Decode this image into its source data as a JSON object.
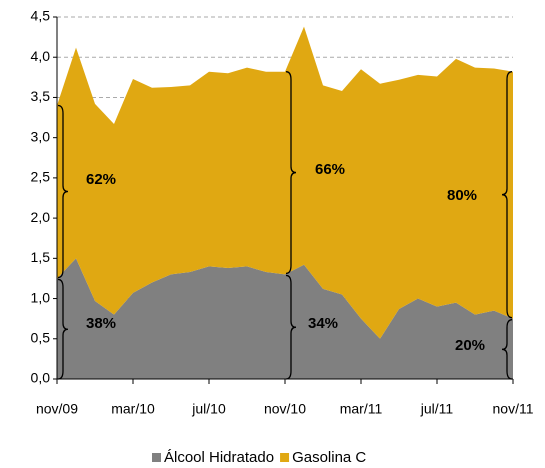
{
  "chart_data": {
    "type": "stacked-area",
    "categories": [
      "nov/09",
      null,
      null,
      null,
      "mar/10",
      null,
      null,
      null,
      "jul/10",
      null,
      null,
      null,
      "nov/10",
      null,
      null,
      null,
      "mar/11",
      null,
      null,
      null,
      "jul/11",
      null,
      null,
      null,
      "nov/11"
    ],
    "series": [
      {
        "name": "Álcool Hidratado",
        "color": "#808080",
        "values": [
          1.25,
          1.5,
          0.97,
          0.8,
          1.07,
          1.2,
          1.3,
          1.33,
          1.4,
          1.38,
          1.4,
          1.33,
          1.3,
          1.42,
          1.12,
          1.05,
          0.75,
          0.5,
          0.87,
          1.0,
          0.9,
          0.95,
          0.8,
          0.85,
          0.75
        ]
      },
      {
        "name": "Gasolina C",
        "color": "#e0a812",
        "values": [
          2.15,
          2.62,
          2.45,
          2.37,
          2.66,
          2.42,
          2.33,
          2.32,
          2.42,
          2.42,
          2.47,
          2.49,
          2.52,
          2.96,
          2.53,
          2.53,
          3.1,
          3.17,
          2.85,
          2.78,
          2.86,
          3.03,
          3.07,
          3.01,
          3.07
        ]
      }
    ],
    "ylim": [
      0,
      4.5
    ],
    "yticks": [
      {
        "value": 0,
        "label": "0,0"
      },
      {
        "value": 0.5,
        "label": "0,5"
      },
      {
        "value": 1,
        "label": "1,0"
      },
      {
        "value": 1.5,
        "label": "1,5"
      },
      {
        "value": 2,
        "label": "2,0"
      },
      {
        "value": 2.5,
        "label": "2,5"
      },
      {
        "value": 3,
        "label": "3,0"
      },
      {
        "value": 3.5,
        "label": "3,5"
      },
      {
        "value": 4,
        "label": "4,0"
      },
      {
        "value": 4.5,
        "label": "4,5"
      }
    ],
    "grid": true,
    "annotations": [
      "62%",
      "38%",
      "66%",
      "34%",
      "80%",
      "20%"
    ],
    "legend": "bottom"
  }
}
